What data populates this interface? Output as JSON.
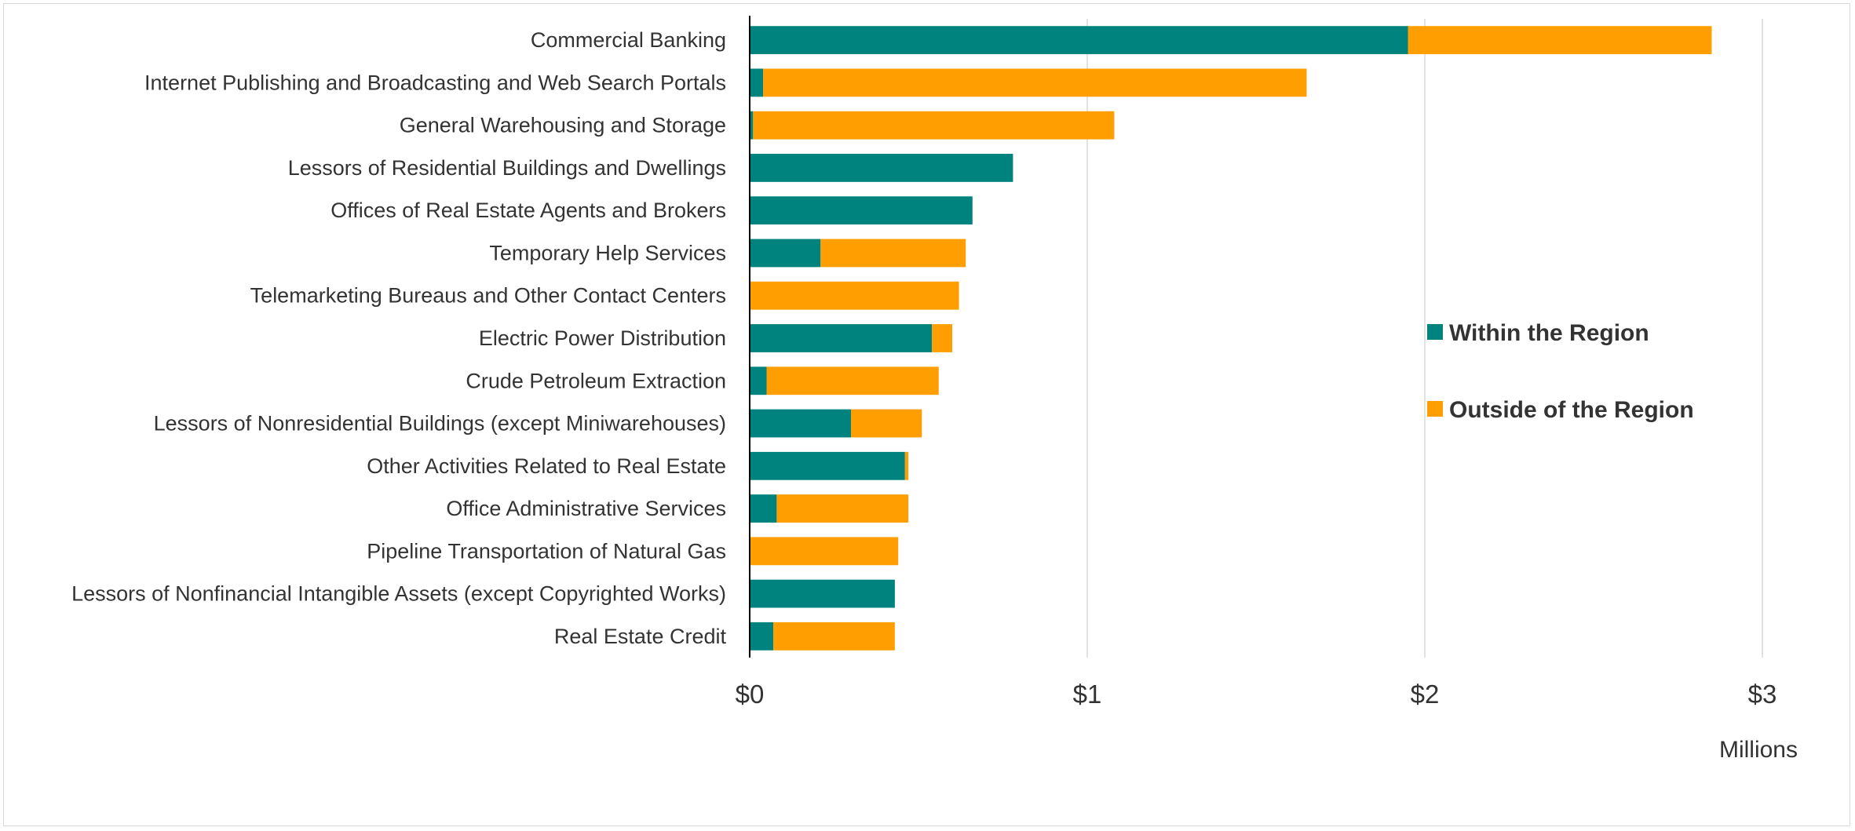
{
  "chart_data": {
    "type": "bar",
    "orientation": "horizontal",
    "stacked": true,
    "categories": [
      "Commercial Banking",
      "Internet Publishing and Broadcasting and Web Search Portals",
      "General Warehousing and Storage",
      "Lessors of Residential Buildings and Dwellings",
      "Offices of Real Estate Agents and Brokers",
      "Temporary Help Services",
      "Telemarketing Bureaus and Other Contact Centers",
      "Electric Power Distribution",
      "Crude Petroleum Extraction",
      "Lessors of Nonresidential Buildings (except Miniwarehouses)",
      "Other Activities Related to Real Estate",
      "Office Administrative Services",
      "Pipeline Transportation of Natural Gas",
      "Lessors of Nonfinancial Intangible Assets (except Copyrighted Works)",
      "Real Estate Credit"
    ],
    "series": [
      {
        "name": "Within the Region",
        "color": "#00827F",
        "values": [
          1.95,
          0.04,
          0.01,
          0.78,
          0.66,
          0.21,
          0.0,
          0.54,
          0.05,
          0.3,
          0.46,
          0.08,
          0.0,
          0.43,
          0.07
        ]
      },
      {
        "name": "Outside of the Region",
        "color": "#FF9E00",
        "values": [
          0.9,
          1.61,
          1.07,
          0.0,
          0.0,
          0.43,
          0.62,
          0.06,
          0.51,
          0.21,
          0.01,
          0.39,
          0.44,
          0.0,
          0.36
        ]
      }
    ],
    "xlim": [
      0,
      3
    ],
    "xticks": [
      0,
      1,
      2,
      3
    ],
    "xtick_labels": [
      "$0",
      "$1",
      "$2",
      "$3"
    ],
    "xlabel": "Millions",
    "ylabel": "",
    "title": "",
    "grid": "vertical",
    "legend_position": "right"
  }
}
